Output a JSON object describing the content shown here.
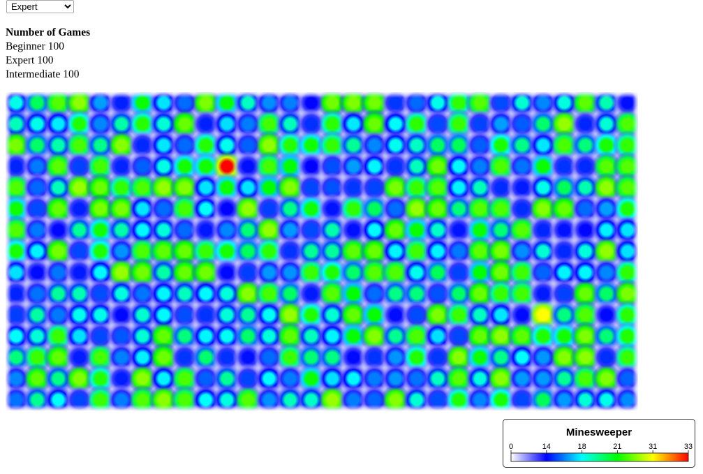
{
  "controls": {
    "level_select": {
      "selected": "Expert",
      "options": [
        "Beginner",
        "Intermediate",
        "Expert"
      ]
    }
  },
  "stats": {
    "title": "Number of Games",
    "rows": [
      {
        "label": "Beginner",
        "value": "100"
      },
      {
        "label": "Expert",
        "value": "100"
      },
      {
        "label": "Intermediate",
        "value": "100"
      }
    ]
  },
  "chart_data": {
    "type": "heatmap",
    "title": "Minesweeper",
    "columns": 30,
    "rows": 15,
    "legend_ticks": [
      0,
      14,
      18,
      21,
      31,
      33
    ],
    "scale_colors": [
      "#ffffff",
      "#0000ff",
      "#00ffff",
      "#00ff00",
      "#ffff00",
      "#ff0000"
    ],
    "hotspots": [
      {
        "col": 10,
        "row": 3,
        "value": 33
      },
      {
        "col": 25,
        "row": 10,
        "value": 31
      }
    ],
    "grid": [
      "U.V.uUuuuU.V.VuuuuuUUUUvuuuuuuuuuuuUuVuUuVUUVUVUuUU",
      "uuuuuUuUUuVvuuVuuuuVUuuuVuuUuUuVvuuuuuuVuuVuu",
      "uuuuuuuuu"
    ]
  }
}
